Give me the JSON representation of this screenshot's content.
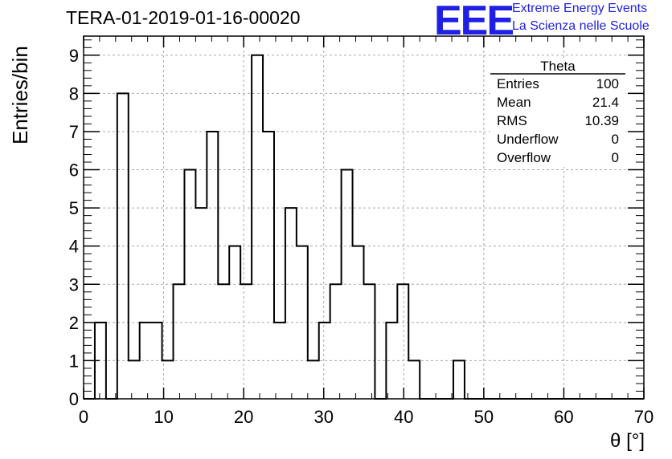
{
  "header": {
    "title": "TERA-01-2019-01-16-00020",
    "logo_text": "EEE",
    "logo_line1": "Extreme Energy Events",
    "logo_line2": "La Scienza nelle Scuole",
    "logo_color": "#1f1fe6"
  },
  "stats_box": {
    "title": "Theta",
    "rows": [
      {
        "label": "Entries",
        "value": "100"
      },
      {
        "label": "Mean",
        "value": "21.4"
      },
      {
        "label": "RMS",
        "value": "10.39"
      },
      {
        "label": "Underflow",
        "value": "0"
      },
      {
        "label": "Overflow",
        "value": "0"
      }
    ]
  },
  "chart_data": {
    "type": "bar",
    "subtype": "histogram",
    "title": "TERA-01-2019-01-16-00020",
    "xlabel": "θ [°]",
    "ylabel": "Entries/bin",
    "xlim": [
      0,
      70
    ],
    "ylim": [
      0,
      9.5
    ],
    "bin_width": 1.4,
    "x_ticks": [
      0,
      10,
      20,
      30,
      40,
      50,
      60,
      70
    ],
    "y_ticks": [
      0,
      1,
      2,
      3,
      4,
      5,
      6,
      7,
      8,
      9
    ],
    "grid": true,
    "values": [
      0,
      2,
      0,
      8,
      1,
      2,
      2,
      1,
      3,
      6,
      5,
      7,
      3,
      4,
      3,
      9,
      7,
      2,
      5,
      4,
      1,
      2,
      3,
      6,
      4,
      3,
      0,
      2,
      3,
      1,
      0,
      0,
      0,
      1,
      0,
      0,
      0,
      0,
      0,
      0,
      0,
      0,
      0,
      0,
      0,
      0,
      0,
      0,
      0,
      0
    ],
    "line_color": "#000000"
  }
}
